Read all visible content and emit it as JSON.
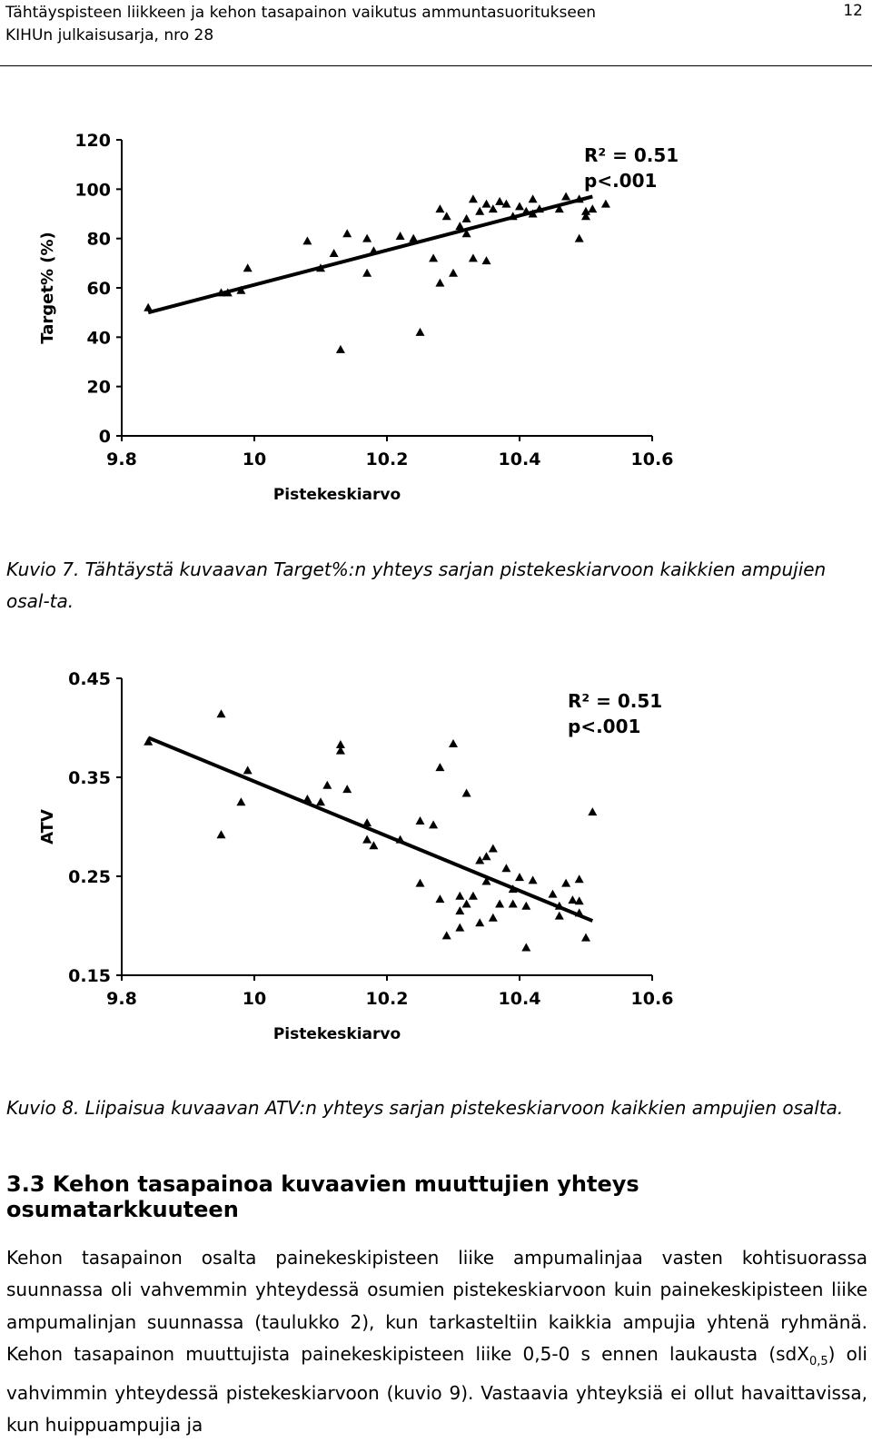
{
  "header": {
    "title_line1": "Tähtäyspisteen liikkeen ja kehon tasapainon vaikutus ammuntasuoritukseen",
    "title_line2": "KIHUn julkaisusarja, nro 28",
    "page_number": "12"
  },
  "figure7": {
    "caption": "Kuvio 7. Tähtäystä kuvaavan Target%:n yhteys sarjan pistekeskiarvoon kaikkien ampujien osal-ta."
  },
  "figure8": {
    "caption": "Kuvio 8. Liipaisua kuvaavan ATV:n yhteys sarjan pistekeskiarvoon kaikkien ampujien osalta."
  },
  "section": {
    "heading": "3.3 Kehon tasapainoa kuvaavien muuttujien yhteys osumatarkkuuteen",
    "paragraph_part1": "Kehon tasapainon osalta painekeskipisteen liike ampumalinjaa vasten kohtisuorassa suunnassa oli vahvemmin yhteydessä osumien pistekeskiarvoon kuin painekeskipisteen liike ampumalinjan suunnassa (taulukko 2), kun tarkasteltiin kaikkia ampujia yhtenä ryhmänä. Kehon tasapainon muuttujista painekeskipisteen liike 0,5-0 s ennen laukausta (sdX",
    "subscript": "0,5",
    "paragraph_part2": ") oli vahvimmin yhteydessä pistekeskiarvoon (kuvio 9). Vastaavia yhteyksiä ei ollut havaittavissa, kun huippuampujia ja"
  },
  "chart_data": [
    {
      "type": "scatter",
      "xlabel": "Pistekeskiarvo",
      "ylabel": "Target% (%)",
      "xlim": [
        9.8,
        10.6
      ],
      "ylim": [
        0,
        120
      ],
      "xticks": [
        "9.8",
        "10",
        "10.2",
        "10.4",
        "10.6"
      ],
      "yticks": [
        "0",
        "20",
        "40",
        "60",
        "80",
        "100",
        "120"
      ],
      "annotations": [
        "R² = 0.51",
        "p<.001"
      ],
      "marker": "triangle",
      "trendline": {
        "x": [
          9.84,
          10.51
        ],
        "y": [
          50,
          97
        ]
      },
      "points": [
        [
          9.84,
          52
        ],
        [
          9.95,
          58
        ],
        [
          9.96,
          58
        ],
        [
          9.98,
          59
        ],
        [
          9.99,
          68
        ],
        [
          10.08,
          79
        ],
        [
          10.1,
          68
        ],
        [
          10.12,
          74
        ],
        [
          10.13,
          35
        ],
        [
          10.14,
          82
        ],
        [
          10.17,
          80
        ],
        [
          10.17,
          66
        ],
        [
          10.18,
          75
        ],
        [
          10.22,
          81
        ],
        [
          10.24,
          80
        ],
        [
          10.25,
          42
        ],
        [
          10.27,
          72
        ],
        [
          10.28,
          92
        ],
        [
          10.29,
          89
        ],
        [
          10.28,
          62
        ],
        [
          10.3,
          66
        ],
        [
          10.31,
          85
        ],
        [
          10.32,
          88
        ],
        [
          10.32,
          82
        ],
        [
          10.33,
          96
        ],
        [
          10.33,
          72
        ],
        [
          10.34,
          91
        ],
        [
          10.35,
          94
        ],
        [
          10.35,
          71
        ],
        [
          10.36,
          92
        ],
        [
          10.37,
          95
        ],
        [
          10.38,
          94
        ],
        [
          10.39,
          89
        ],
        [
          10.4,
          93
        ],
        [
          10.41,
          91
        ],
        [
          10.42,
          96
        ],
        [
          10.42,
          90
        ],
        [
          10.43,
          92
        ],
        [
          10.46,
          92
        ],
        [
          10.47,
          97
        ],
        [
          10.49,
          96
        ],
        [
          10.49,
          80
        ],
        [
          10.5,
          89
        ],
        [
          10.5,
          91
        ],
        [
          10.51,
          92
        ],
        [
          10.53,
          94
        ]
      ]
    },
    {
      "type": "scatter",
      "xlabel": "Pistekeskiarvo",
      "ylabel": "ATV",
      "xlim": [
        9.8,
        10.6
      ],
      "ylim": [
        0.15,
        0.45
      ],
      "xticks": [
        "9.8",
        "10",
        "10.2",
        "10.4",
        "10.6"
      ],
      "yticks": [
        "0.15",
        "0.25",
        "0.35",
        "0.45"
      ],
      "annotations": [
        "R² = 0.51",
        "p<.001"
      ],
      "marker": "triangle",
      "trendline": {
        "x": [
          9.84,
          10.51
        ],
        "y": [
          0.39,
          0.205
        ]
      },
      "points": [
        [
          9.84,
          0.386
        ],
        [
          9.95,
          0.414
        ],
        [
          9.95,
          0.292
        ],
        [
          9.98,
          0.325
        ],
        [
          9.99,
          0.357
        ],
        [
          10.08,
          0.328
        ],
        [
          10.1,
          0.325
        ],
        [
          10.11,
          0.342
        ],
        [
          10.13,
          0.383
        ],
        [
          10.13,
          0.377
        ],
        [
          10.14,
          0.338
        ],
        [
          10.17,
          0.304
        ],
        [
          10.17,
          0.287
        ],
        [
          10.18,
          0.281
        ],
        [
          10.22,
          0.287
        ],
        [
          10.25,
          0.306
        ],
        [
          10.25,
          0.243
        ],
        [
          10.27,
          0.302
        ],
        [
          10.28,
          0.227
        ],
        [
          10.28,
          0.36
        ],
        [
          10.29,
          0.19
        ],
        [
          10.3,
          0.384
        ],
        [
          10.31,
          0.23
        ],
        [
          10.31,
          0.215
        ],
        [
          10.31,
          0.198
        ],
        [
          10.32,
          0.334
        ],
        [
          10.32,
          0.222
        ],
        [
          10.33,
          0.23
        ],
        [
          10.34,
          0.203
        ],
        [
          10.34,
          0.266
        ],
        [
          10.35,
          0.27
        ],
        [
          10.35,
          0.245
        ],
        [
          10.36,
          0.278
        ],
        [
          10.36,
          0.208
        ],
        [
          10.37,
          0.222
        ],
        [
          10.38,
          0.258
        ],
        [
          10.39,
          0.237
        ],
        [
          10.39,
          0.222
        ],
        [
          10.4,
          0.249
        ],
        [
          10.41,
          0.178
        ],
        [
          10.41,
          0.22
        ],
        [
          10.42,
          0.246
        ],
        [
          10.45,
          0.232
        ],
        [
          10.46,
          0.21
        ],
        [
          10.46,
          0.22
        ],
        [
          10.47,
          0.243
        ],
        [
          10.48,
          0.226
        ],
        [
          10.49,
          0.247
        ],
        [
          10.49,
          0.225
        ],
        [
          10.49,
          0.213
        ],
        [
          10.5,
          0.188
        ],
        [
          10.51,
          0.315
        ]
      ]
    }
  ]
}
